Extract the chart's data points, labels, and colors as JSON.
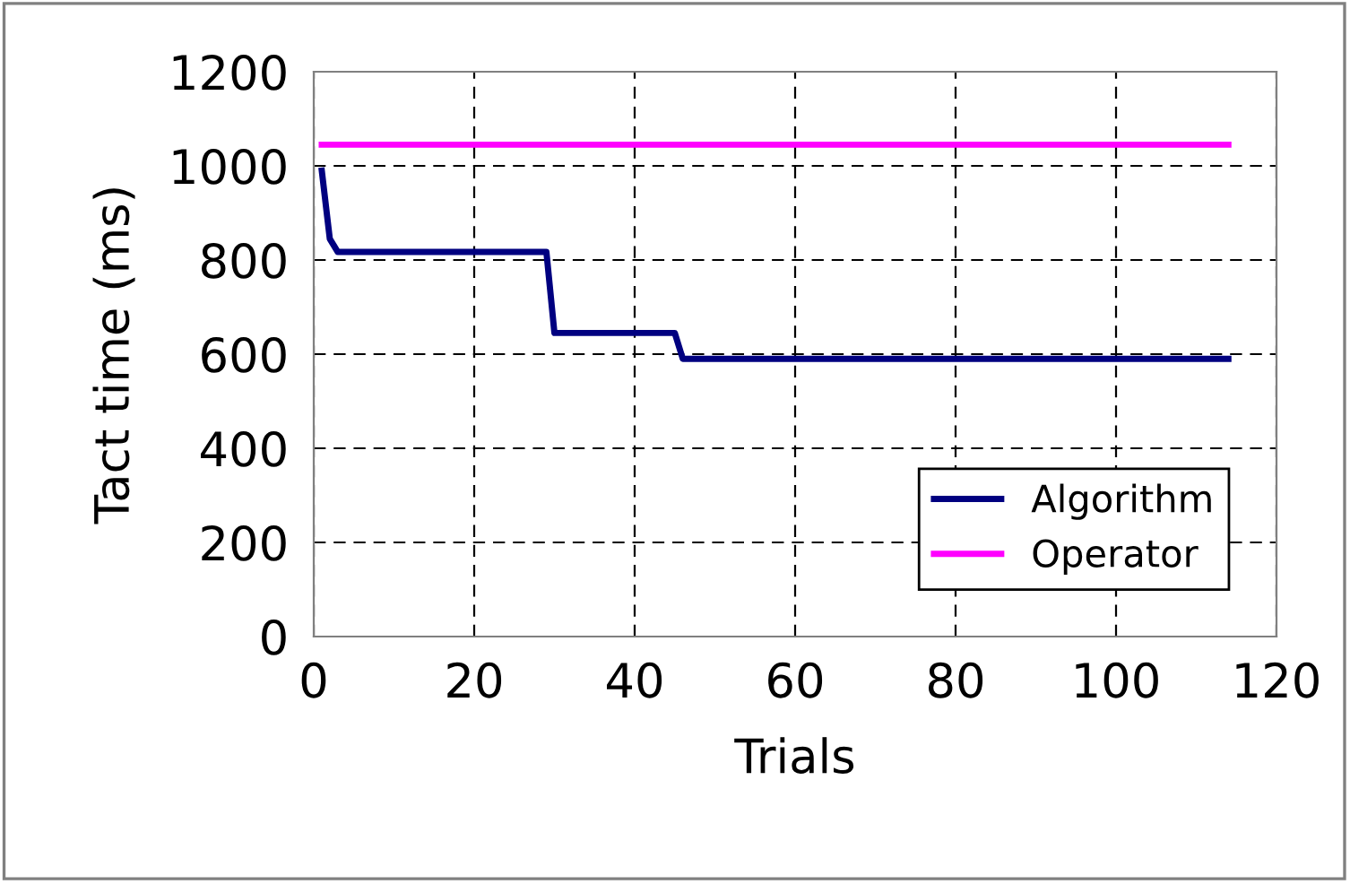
{
  "chart_data": {
    "type": "line",
    "xlabel": "Trials",
    "ylabel": "Tact time (ms)",
    "xlim": [
      0,
      120
    ],
    "xticks": [
      0,
      20,
      40,
      60,
      80,
      100,
      120
    ],
    "ylim": [
      0,
      1200
    ],
    "yticks": [
      0,
      200,
      400,
      600,
      800,
      1000,
      1200
    ],
    "grid": true,
    "legend": "bottom right",
    "line_style": "solid",
    "marker": "none",
    "series": [
      {
        "name": "Algorithm",
        "color": "#000080",
        "x": [
          1,
          2,
          3,
          29,
          30,
          45,
          46,
          114
        ],
        "values": [
          990,
          845,
          817,
          817,
          645,
          645,
          590,
          590
        ]
      },
      {
        "name": "Operator",
        "color": "#ff00ff",
        "x": [
          1,
          114
        ],
        "values": [
          1045,
          1045
        ]
      }
    ]
  }
}
